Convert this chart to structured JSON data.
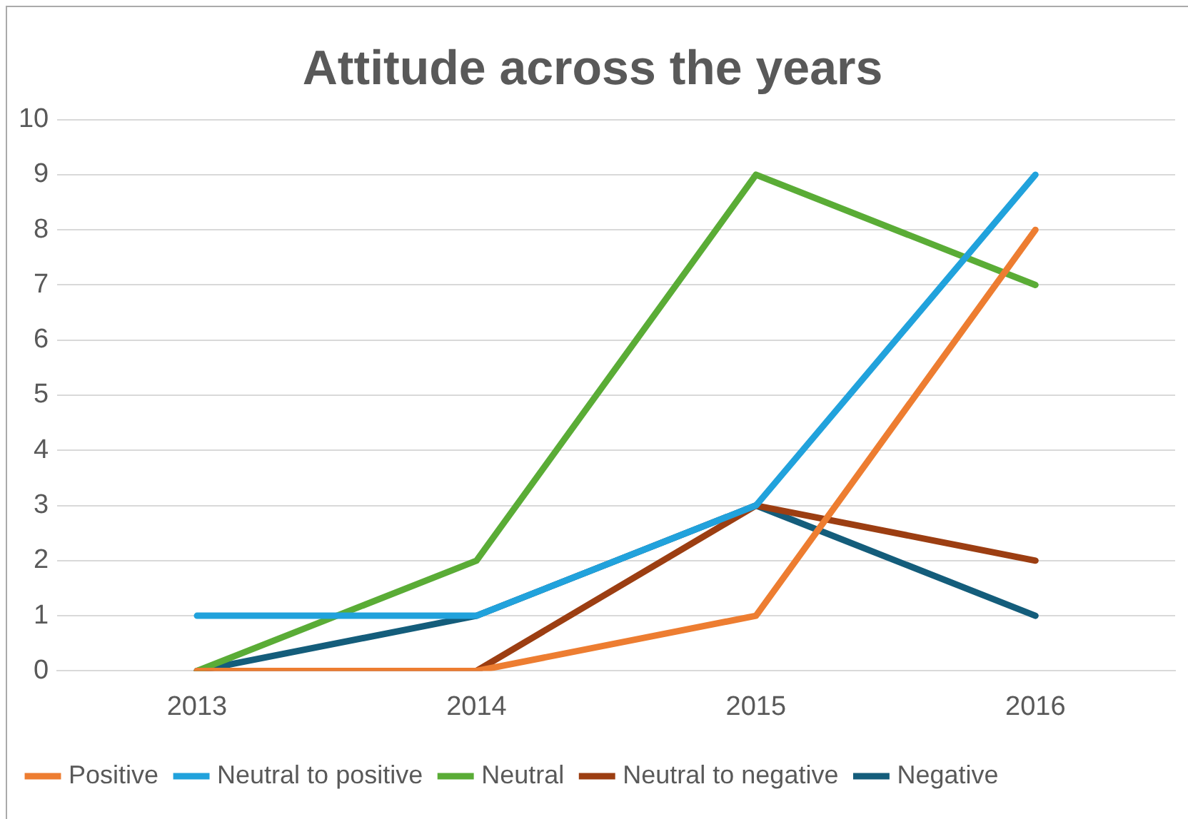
{
  "chart_data": {
    "type": "line",
    "title": "Attitude across the years",
    "categories": [
      "2013",
      "2014",
      "2015",
      "2016"
    ],
    "series": [
      {
        "name": "Positive",
        "color": "#ed7d31",
        "values": [
          0,
          0,
          1,
          8
        ]
      },
      {
        "name": "Neutral to positive",
        "color": "#21a2dc",
        "values": [
          1,
          1,
          3,
          9
        ]
      },
      {
        "name": "Neutral",
        "color": "#5aac36",
        "values": [
          0,
          2,
          9,
          7
        ]
      },
      {
        "name": "Neutral to negative",
        "color": "#9c3e12",
        "values": [
          0,
          0,
          3,
          2
        ]
      },
      {
        "name": "Negative",
        "color": "#145d7b",
        "values": [
          0,
          1,
          3,
          1
        ]
      }
    ],
    "ylim": [
      0,
      10
    ],
    "yticks": [
      0,
      1,
      2,
      3,
      4,
      5,
      6,
      7,
      8,
      9,
      10
    ],
    "grid": "y",
    "legend": "bottom",
    "marker": "none",
    "line_style": "solid"
  }
}
